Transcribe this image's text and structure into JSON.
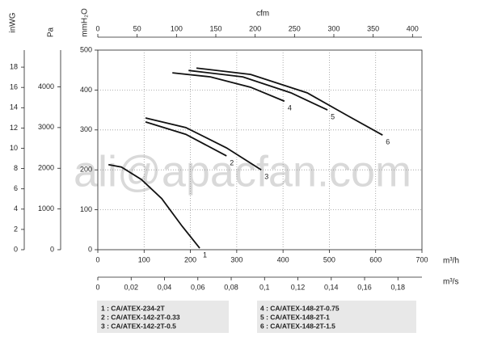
{
  "chart_data": {
    "type": "line",
    "watermark": "ali@apacfan.com",
    "x_label": "m³/h",
    "y_label": "mmH₂O",
    "x2_label": "cfm",
    "x3_label": "m³/s",
    "y2_label": "Pa",
    "y3_label": "inWG",
    "xlim": [
      0,
      700
    ],
    "xticks": [
      0,
      100,
      200,
      300,
      400,
      500,
      600,
      700
    ],
    "ylim": [
      0,
      500
    ],
    "yticks": [
      0,
      100,
      200,
      300,
      400,
      500
    ],
    "x2lim": [
      0,
      412
    ],
    "x2ticks": [
      0,
      50,
      100,
      150,
      200,
      250,
      300,
      350,
      400
    ],
    "x3lim": [
      0,
      0.1944
    ],
    "x3ticks": [
      0,
      {
        "value": 0.02,
        "label": "0,02"
      },
      {
        "value": 0.04,
        "label": "0,04"
      },
      {
        "value": 0.06,
        "label": "0,06"
      },
      {
        "value": 0.08,
        "label": "0,08"
      },
      {
        "value": 0.1,
        "label": "0,1"
      },
      {
        "value": 0.12,
        "label": "0,12"
      },
      {
        "value": 0.14,
        "label": "0,14"
      },
      {
        "value": 0.16,
        "label": "0,16"
      },
      {
        "value": 0.18,
        "label": "0,18"
      }
    ],
    "y2lim": [
      0,
      4903
    ],
    "y2ticks": [
      0,
      1000,
      2000,
      3000,
      4000
    ],
    "y3lim": [
      0,
      19.68
    ],
    "y3ticks": [
      0,
      2,
      4,
      6,
      8,
      10,
      12,
      14,
      16,
      18
    ],
    "grid": true,
    "color": "#111111",
    "series": [
      {
        "name": "1 : CA/ATEX-234-2T",
        "label": "1",
        "x": [
          23,
          51,
          94,
          138,
          182,
          220
        ],
        "values": [
          213,
          207,
          176,
          128,
          59,
          4
        ]
      },
      {
        "name": "2 : CA/ATEX-142-2T-0.33",
        "label": "2",
        "x": [
          103,
          190,
          278
        ],
        "values": [
          320,
          289,
          235
        ]
      },
      {
        "name": "3 : CA/ATEX-142-2T-0.5",
        "label": "3",
        "x": [
          103,
          190,
          278,
          353
        ],
        "values": [
          330,
          306,
          255,
          200
        ]
      },
      {
        "name": "4 : CA/ATEX-148-2T-0.75",
        "label": "4",
        "x": [
          161,
          243,
          330,
          403
        ],
        "values": [
          443,
          433,
          407,
          372
        ]
      },
      {
        "name": "5 : CA/ATEX-148-2T-1",
        "label": "5",
        "x": [
          196,
          313,
          417,
          496
        ],
        "values": [
          449,
          433,
          393,
          350
        ]
      },
      {
        "name": "6 : CA/ATEX-148-2T-1.5",
        "label": "6",
        "x": [
          213,
          330,
          452,
          539,
          615
        ],
        "values": [
          455,
          439,
          393,
          336,
          287
        ]
      }
    ]
  }
}
